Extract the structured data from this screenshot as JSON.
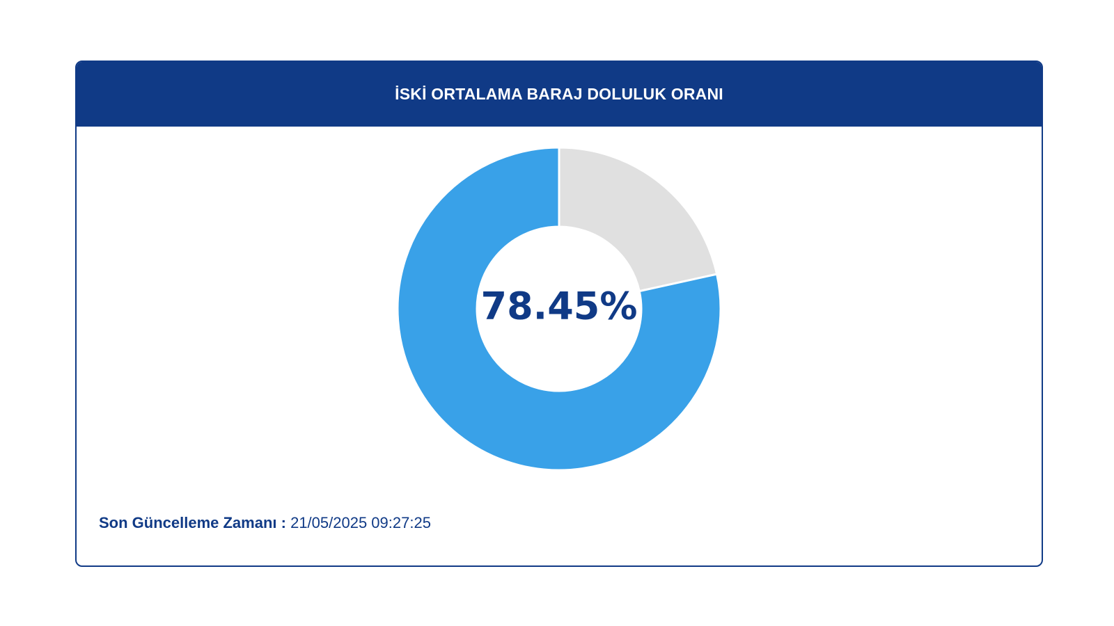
{
  "card": {
    "title": "İSKİ ORTALAMA BARAJ DOLULUK ORANI"
  },
  "colors": {
    "header_bg": "#103a86",
    "filled": "#39a1e8",
    "empty": "#e0e0e0",
    "text_dark": "#103a86"
  },
  "chart_data": {
    "type": "pie",
    "title": "İSKİ ORTALAMA BARAJ DOLULUK ORANI",
    "center_label": "78.45%",
    "slices": [
      {
        "value": 78.45,
        "color": "#39a1e8"
      },
      {
        "value": 21.55,
        "color": "#e0e0e0"
      }
    ]
  },
  "footer": {
    "label": "Son Güncelleme Zamanı :",
    "value": "21/05/2025 09:27:25"
  }
}
